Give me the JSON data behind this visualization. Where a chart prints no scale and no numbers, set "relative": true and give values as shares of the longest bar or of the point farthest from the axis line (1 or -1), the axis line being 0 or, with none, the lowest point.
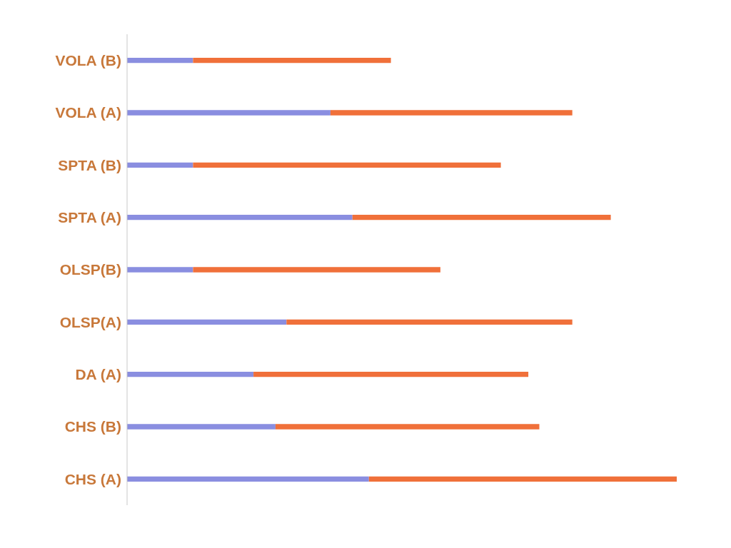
{
  "chart_data": {
    "type": "bar",
    "orientation": "horizontal",
    "stacked": true,
    "relative": true,
    "legend": false,
    "grid": false,
    "categories": [
      "VOLA (B)",
      "VOLA (A)",
      "SPTA (B)",
      "SPTA (A)",
      "OLSP(B)",
      "OLSP(A)",
      "DA (A)",
      "CHS (B)",
      "CHS (A)"
    ],
    "series": [
      {
        "color": "#8a8ee0",
        "values": [
          0.12,
          0.37,
          0.12,
          0.41,
          0.12,
          0.29,
          0.23,
          0.27,
          0.44
        ]
      },
      {
        "color": "#f0703a",
        "values": [
          0.36,
          0.44,
          0.56,
          0.47,
          0.45,
          0.52,
          0.5,
          0.48,
          0.56
        ]
      }
    ]
  }
}
